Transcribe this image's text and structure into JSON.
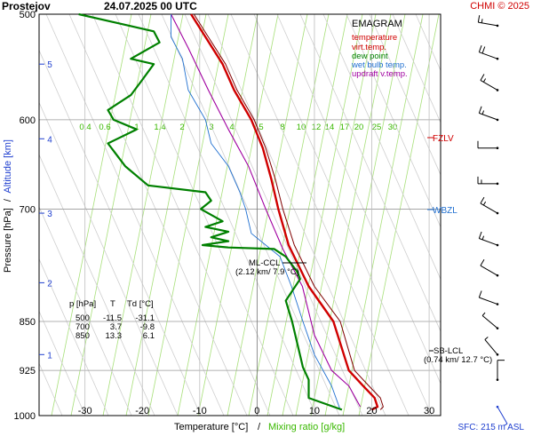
{
  "header": {
    "station": "Prostejov",
    "datetime": "24.07.2025 00 UTC",
    "credit": "CHMI © 2025"
  },
  "legend": {
    "title": "EMAGRAM",
    "items": [
      {
        "label": "temperature",
        "color": "#d00000"
      },
      {
        "label": "virt.temp.",
        "color": "#d00000"
      },
      {
        "label": "dew point",
        "color": "#008000"
      },
      {
        "label": "wet bulb temp.",
        "color": "#1f6fd0"
      },
      {
        "label": "updraft v.temp.",
        "color": "#a000a0"
      }
    ]
  },
  "axes": {
    "ylabel_left": "Pressure [hPa]",
    "ylabel_sep": "/",
    "ylabel_right": "Altitude [km]",
    "xlabel": "Temperature [°C]",
    "xlabel_sep": "/",
    "xlabel2": "Mixing ratio [g/kg]",
    "sfc_note": "SFC: 215 m ASL"
  },
  "annotations": {
    "fzlv": "FZLV",
    "wbzl": "WBZL",
    "ml_ccl_1": "ML-CCL",
    "ml_ccl_2": "(2.12 km/ 7.9 °C)",
    "sb_lcl_1": "SB-LCL",
    "sb_lcl_2": "(0.74 km/ 12.7 °C)"
  },
  "table": {
    "headers": [
      "p [hPa]",
      "T",
      "Td [°C]"
    ],
    "rows": [
      [
        "500",
        "-11.5",
        "-31.1"
      ],
      [
        "700",
        "3.7",
        "-9.8"
      ],
      [
        "850",
        "13.3",
        "6.1"
      ]
    ]
  },
  "chart_data": {
    "type": "line",
    "title": "EMAGRAM",
    "xlabel": "Temperature [°C]",
    "ylabel": "Pressure [hPa]",
    "xlim": [
      -38,
      32
    ],
    "ylim": [
      1000,
      500
    ],
    "y_scale": "log",
    "x_ticks": [
      -30,
      -20,
      -10,
      0,
      10,
      20,
      30
    ],
    "p_ticks": [
      500,
      600,
      700,
      850,
      925,
      1000
    ],
    "alt_ticks": [
      {
        "label": "1",
        "p": 900
      },
      {
        "label": "2",
        "p": 795
      },
      {
        "label": "3",
        "p": 705
      },
      {
        "label": "4",
        "p": 620
      },
      {
        "label": "5",
        "p": 545
      }
    ],
    "mixing_ratio_labels": [
      "0.4",
      "0.6",
      "1",
      "1.4",
      "2",
      "3",
      "4",
      "5",
      "8",
      "10",
      "12",
      "14",
      "17",
      "20",
      "25",
      "30"
    ],
    "series": [
      {
        "name": "temperature",
        "color": "#d00000",
        "points": [
          [
            20,
            990
          ],
          [
            21,
            985
          ],
          [
            20.5,
            970
          ],
          [
            18.5,
            950
          ],
          [
            16,
            925
          ],
          [
            13.3,
            850
          ],
          [
            9,
            800
          ],
          [
            5.5,
            745
          ],
          [
            3.7,
            700
          ],
          [
            2.5,
            665
          ],
          [
            1,
            630
          ],
          [
            -1,
            600
          ],
          [
            -4,
            570
          ],
          [
            -6,
            545
          ],
          [
            -9,
            520
          ],
          [
            -11.5,
            500
          ]
        ]
      },
      {
        "name": "virt.temp.",
        "color": "#800000",
        "points": [
          [
            21.5,
            990
          ],
          [
            22,
            985
          ],
          [
            21.5,
            970
          ],
          [
            19.5,
            950
          ],
          [
            17,
            925
          ],
          [
            14.5,
            850
          ],
          [
            10,
            800
          ],
          [
            6.5,
            745
          ],
          [
            4.5,
            700
          ],
          [
            3.2,
            665
          ],
          [
            1.5,
            630
          ],
          [
            -0.5,
            600
          ],
          [
            -3.5,
            570
          ],
          [
            -5.5,
            545
          ],
          [
            -8.5,
            520
          ],
          [
            -11,
            500
          ]
        ]
      },
      {
        "name": "dew point",
        "color": "#008000",
        "points": [
          [
            14.8,
            990
          ],
          [
            9,
            970
          ],
          [
            9,
            940
          ],
          [
            8,
            920
          ],
          [
            6.1,
            850
          ],
          [
            5,
            820
          ],
          [
            7.5,
            790
          ],
          [
            7,
            780
          ],
          [
            5,
            760
          ],
          [
            3,
            750
          ],
          [
            -5,
            748
          ],
          [
            -9.5,
            745
          ],
          [
            -5,
            740
          ],
          [
            -8,
            735
          ],
          [
            -5,
            728
          ],
          [
            -9,
            722
          ],
          [
            -6,
            715
          ],
          [
            -9.8,
            700
          ],
          [
            -8,
            690
          ],
          [
            -9,
            680
          ],
          [
            -19,
            672
          ],
          [
            -23,
            650
          ],
          [
            -26,
            625
          ],
          [
            -21,
            610
          ],
          [
            -25,
            600
          ],
          [
            -26,
            590
          ],
          [
            -22,
            575
          ],
          [
            -20,
            560
          ],
          [
            -18,
            545
          ],
          [
            -22,
            540
          ],
          [
            -17,
            525
          ],
          [
            -18,
            515
          ],
          [
            -31.1,
            500
          ]
        ]
      },
      {
        "name": "wet bulb temp.",
        "color": "#1f6fd0",
        "points": [
          [
            14.5,
            990
          ],
          [
            13,
            950
          ],
          [
            10,
            900
          ],
          [
            8,
            850
          ],
          [
            6,
            800
          ],
          [
            4,
            760
          ],
          [
            -1,
            730
          ],
          [
            -2,
            700
          ],
          [
            -3,
            680
          ],
          [
            -5,
            650
          ],
          [
            -8,
            625
          ],
          [
            -9,
            600
          ],
          [
            -12,
            570
          ],
          [
            -13,
            540
          ],
          [
            -15,
            520
          ],
          [
            -15,
            500
          ]
        ]
      },
      {
        "name": "updraft v.temp.",
        "color": "#a000a0",
        "points": [
          [
            18,
            985
          ],
          [
            16,
            950
          ],
          [
            13,
            925
          ],
          [
            10,
            870
          ],
          [
            7.9,
            800
          ],
          [
            4.5,
            750
          ],
          [
            1.5,
            700
          ],
          [
            -1.5,
            650
          ],
          [
            -5,
            610
          ],
          [
            -8.5,
            570
          ],
          [
            -12,
            530
          ],
          [
            -15,
            500
          ]
        ]
      }
    ],
    "levels_marked": [
      {
        "name": "FZLV",
        "p": 628
      },
      {
        "name": "WBZL",
        "p": 712
      },
      {
        "name": "ML-CCL",
        "p": 785
      },
      {
        "name": "SB-LCL",
        "p": 920
      }
    ],
    "wind_barbs": [
      {
        "p": 510,
        "dir_deg": 280,
        "speed_kt": 15
      },
      {
        "p": 540,
        "dir_deg": 290,
        "speed_kt": 20
      },
      {
        "p": 570,
        "dir_deg": 300,
        "speed_kt": 15
      },
      {
        "p": 600,
        "dir_deg": 290,
        "speed_kt": 15
      },
      {
        "p": 630,
        "dir_deg": 270,
        "speed_kt": 10
      },
      {
        "p": 670,
        "dir_deg": 270,
        "speed_kt": 15
      },
      {
        "p": 705,
        "dir_deg": 300,
        "speed_kt": 15
      },
      {
        "p": 745,
        "dir_deg": 290,
        "speed_kt": 15
      },
      {
        "p": 785,
        "dir_deg": 300,
        "speed_kt": 10
      },
      {
        "p": 825,
        "dir_deg": 290,
        "speed_kt": 10
      },
      {
        "p": 860,
        "dir_deg": 310,
        "speed_kt": 5
      },
      {
        "p": 900,
        "dir_deg": 320,
        "speed_kt": 5
      },
      {
        "p": 940,
        "dir_deg": 0,
        "speed_kt": 10
      },
      {
        "p": 985,
        "dir_deg": 150,
        "speed_kt": 5
      }
    ],
    "grid": true
  }
}
